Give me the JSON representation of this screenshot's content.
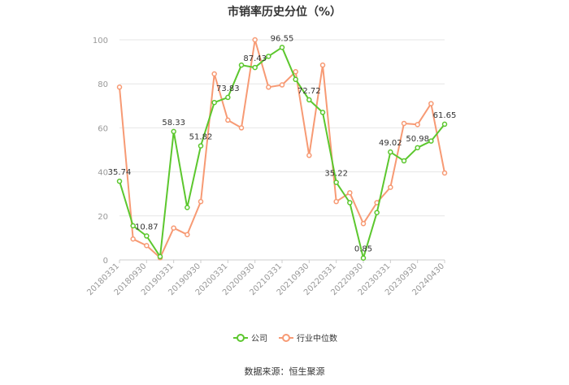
{
  "chart_data": {
    "type": "line",
    "title": "市销率历史分位（%）",
    "ylim": [
      0,
      100
    ],
    "yticks": [
      0,
      20,
      40,
      60,
      80,
      100
    ],
    "grid": true,
    "legend_position": "bottom",
    "x": [
      "20180331",
      "20180630",
      "20180930",
      "20181231",
      "20190331",
      "20190630",
      "20190930",
      "20191231",
      "20200331",
      "20200630",
      "20200930",
      "20201231",
      "20210331",
      "20210630",
      "20210930",
      "20211231",
      "20220331",
      "20220630",
      "20220930",
      "20221231",
      "20230331",
      "20230630",
      "20230930",
      "20231231",
      "20240430"
    ],
    "xtick_labels": [
      "20180331",
      "20180930",
      "20190331",
      "20190930",
      "20200331",
      "20200930",
      "20210331",
      "20210930",
      "20220331",
      "20220930",
      "20230331",
      "20230930",
      "20240430"
    ],
    "series": [
      {
        "name": "公司",
        "color": "#5cc72e",
        "values": [
          35.74,
          15.5,
          10.87,
          1.5,
          58.33,
          23.8,
          51.82,
          71.5,
          73.83,
          88.5,
          87.43,
          92.5,
          96.55,
          82.0,
          72.72,
          67.0,
          35.22,
          26.0,
          0.85,
          21.5,
          49.02,
          45.0,
          50.98,
          54.0,
          61.65
        ],
        "labels": {
          "0": "35.74",
          "2": "10.87",
          "4": "58.33",
          "6": "51.82",
          "8": "73.83",
          "10": "87.43",
          "12": "96.55",
          "14": "72.72",
          "16": "35.22",
          "18": "0.85",
          "20": "49.02",
          "22": "50.98",
          "24": "61.65"
        }
      },
      {
        "name": "行业中位数",
        "color": "#f79a74",
        "values": [
          78.5,
          9.5,
          6.5,
          1.0,
          14.5,
          11.5,
          26.5,
          84.5,
          63.5,
          60.0,
          100.0,
          78.5,
          79.5,
          85.5,
          47.5,
          88.5,
          26.5,
          30.5,
          16.5,
          26.0,
          33.0,
          62.0,
          61.5,
          71.0,
          39.5
        ]
      }
    ]
  },
  "source": "数据来源：恒生聚源"
}
